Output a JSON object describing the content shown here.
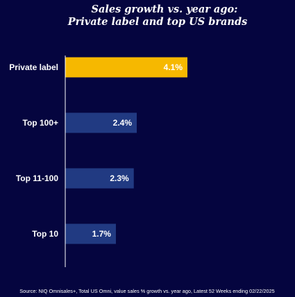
{
  "chart_data": {
    "type": "bar",
    "orientation": "horizontal",
    "title": [
      "Sales growth vs. year ago:",
      "Private label and top US brands"
    ],
    "categories": [
      "Private label",
      "Top 100+",
      "Top 11-100",
      "Top 10"
    ],
    "values": [
      4.1,
      2.4,
      2.3,
      1.7
    ],
    "value_labels": [
      "4.1%",
      "2.4%",
      "2.3%",
      "1.7%"
    ],
    "colors": [
      "#f6b800",
      "#213a82",
      "#213a82",
      "#213a82"
    ],
    "xlim": [
      0,
      4.1
    ],
    "grid": false,
    "legend": "none",
    "source": "Source: NIQ Omnisales+, Total US Omni, value sales % growth vs. year ago, Latest 52 Weeks ending 02/22/2025"
  },
  "colors": {
    "background": "#05053f",
    "axis": "#ffffff",
    "text": "#ffffff"
  }
}
